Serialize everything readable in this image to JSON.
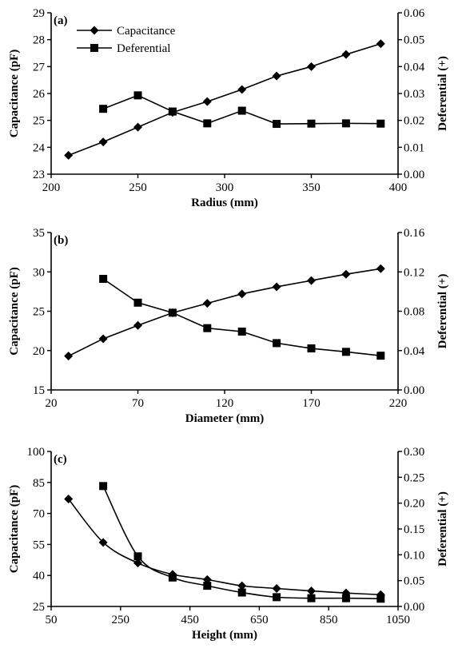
{
  "chart_data": [
    {
      "type": "line",
      "panel_label": "(a)",
      "xlabel": "Radius (mm)",
      "ylabel_left": "Capacitance (pF)",
      "ylabel_right": "Deferential (+)",
      "xlim": [
        200,
        400
      ],
      "x_ticks": [
        200,
        250,
        300,
        350,
        400
      ],
      "ylim_left": [
        23,
        29
      ],
      "y_ticks_left": [
        23,
        24,
        25,
        26,
        27,
        28,
        29
      ],
      "ylim_right": [
        0.0,
        0.06
      ],
      "y_ticks_right": [
        "0.00",
        "0.01",
        "0.02",
        "0.03",
        "0.04",
        "0.05",
        "0.06"
      ],
      "legend": {
        "position": "top-left",
        "entries": [
          "Capacitance",
          "Deferential"
        ]
      },
      "series": [
        {
          "name": "Capacitance",
          "axis": "left",
          "marker": "diamond",
          "x": [
            210,
            230,
            250,
            270,
            290,
            310,
            330,
            350,
            370,
            390
          ],
          "y": [
            23.7,
            24.2,
            24.75,
            25.3,
            25.7,
            26.15,
            26.65,
            27.0,
            27.45,
            27.85
          ]
        },
        {
          "name": "Deferential",
          "axis": "right",
          "marker": "square",
          "x": [
            230,
            250,
            270,
            290,
            310,
            330,
            350,
            370,
            390
          ],
          "y": [
            0.0243,
            0.0293,
            0.0233,
            0.0189,
            0.0236,
            0.0187,
            0.0188,
            0.0189,
            0.0188
          ]
        }
      ]
    },
    {
      "type": "line",
      "panel_label": "(b)",
      "xlabel": "Diameter (mm)",
      "ylabel_left": "Capacitance (pF)",
      "ylabel_right": "Deferential (+)",
      "xlim": [
        20,
        220
      ],
      "x_ticks": [
        20,
        70,
        120,
        170,
        220
      ],
      "ylim_left": [
        15,
        35
      ],
      "y_ticks_left": [
        15,
        20,
        25,
        30,
        35
      ],
      "ylim_right": [
        0.0,
        0.16
      ],
      "y_ticks_right": [
        "0.00",
        "0.04",
        "0.08",
        "0.12",
        "0.16"
      ],
      "series": [
        {
          "name": "Capacitance",
          "axis": "left",
          "marker": "diamond",
          "x": [
            30,
            50,
            70,
            90,
            110,
            130,
            150,
            170,
            190,
            210
          ],
          "y": [
            19.3,
            21.5,
            23.2,
            24.8,
            26.0,
            27.2,
            28.1,
            28.9,
            29.7,
            30.4
          ]
        },
        {
          "name": "Deferential",
          "axis": "right",
          "marker": "square",
          "x": [
            50,
            70,
            90,
            110,
            130,
            150,
            170,
            190,
            210
          ],
          "y": [
            0.1129,
            0.0887,
            0.0785,
            0.0628,
            0.0593,
            0.0476,
            0.0422,
            0.0387,
            0.0348
          ]
        }
      ]
    },
    {
      "type": "line",
      "panel_label": "(c)",
      "xlabel": "Height (mm)",
      "ylabel_left": "Capacitance (pF)",
      "ylabel_right": "Deferential (+)",
      "xlim": [
        50,
        1050
      ],
      "x_ticks": [
        50,
        250,
        450,
        650,
        850,
        1050
      ],
      "ylim_left": [
        25,
        100
      ],
      "y_ticks_left": [
        25,
        40,
        55,
        70,
        85,
        100
      ],
      "ylim_right": [
        0.0,
        0.3
      ],
      "y_ticks_right": [
        "0.00",
        "0.05",
        "0.10",
        "0.15",
        "0.20",
        "0.25",
        "0.30"
      ],
      "series": [
        {
          "name": "Capacitance",
          "axis": "left",
          "marker": "diamond",
          "x": [
            100,
            200,
            300,
            400,
            500,
            600,
            700,
            800,
            900,
            1000
          ],
          "y": [
            77,
            56,
            46,
            40.5,
            38,
            35,
            33.7,
            32.5,
            31.5,
            30.7
          ]
        },
        {
          "name": "Deferential",
          "axis": "right",
          "marker": "square",
          "x": [
            200,
            300,
            400,
            500,
            600,
            700,
            800,
            900,
            1000
          ],
          "y": [
            0.233,
            0.097,
            0.056,
            0.04,
            0.027,
            0.018,
            0.016,
            0.016,
            0.015
          ]
        }
      ]
    }
  ]
}
